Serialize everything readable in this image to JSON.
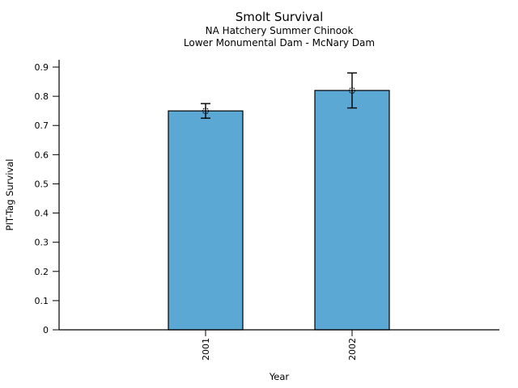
{
  "chart_data": {
    "type": "bar",
    "title": "Smolt Survival",
    "subtitle1": "NA Hatchery Summer Chinook",
    "subtitle2": "Lower Monumental Dam - McNary Dam",
    "xlabel": "Year",
    "ylabel": "PIT-Tag Survival",
    "categories": [
      "2001",
      "2002"
    ],
    "values": [
      0.75,
      0.82
    ],
    "error_low": [
      0.725,
      0.76
    ],
    "error_high": [
      0.775,
      0.88
    ],
    "ylim": [
      0,
      0.9
    ],
    "yticks": [
      0,
      0.1,
      0.2,
      0.3,
      0.4,
      0.5,
      0.6,
      0.7,
      0.8,
      0.9
    ],
    "ytick_labels": [
      "0",
      "0.1",
      "0.2",
      "0.3",
      "0.4",
      "0.5",
      "0.6",
      "0.7",
      "0.8",
      "0.9"
    ],
    "bar_color": "#5BA8D5",
    "bar_edge_color": "#000000",
    "error_bar_color": "#000000",
    "marker": "open-circle",
    "grid": false,
    "legend": "none"
  }
}
